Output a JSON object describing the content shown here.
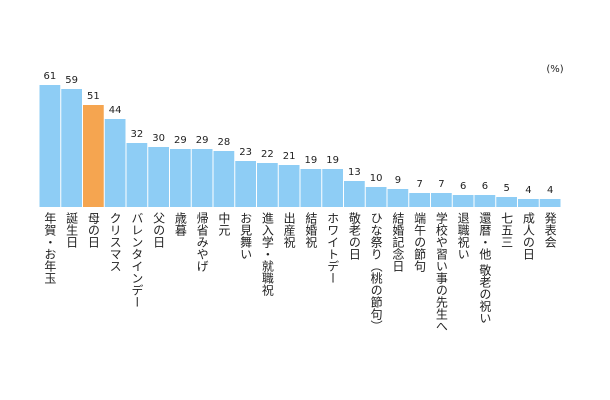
{
  "chart_data": {
    "type": "bar",
    "unit": "(%)",
    "categories": [
      "年賀・お年玉",
      "誕生日",
      "母の日",
      "クリスマス",
      "バレンタインデー",
      "父の日",
      "歳暮",
      "帰省みやげ",
      "中元",
      "お見舞い",
      "進入学・就職祝",
      "出産祝",
      "結婚祝",
      "ホワイトデー",
      "敬老の日",
      "ひな祭り（桃の節句）",
      "結婚記念日",
      "端午の節句",
      "学校や習い事の先生へ",
      "退職祝い",
      "還暦・他 敬老の祝い",
      "七五三",
      "成人の日",
      "発表会"
    ],
    "values": [
      61,
      59,
      51,
      44,
      32,
      30,
      29,
      29,
      28,
      23,
      22,
      21,
      19,
      19,
      13,
      10,
      9,
      7,
      7,
      6,
      6,
      5,
      4,
      4
    ],
    "colors": [
      "#8ecdf5",
      "#8ecdf5",
      "#f5a550",
      "#8ecdf5",
      "#8ecdf5",
      "#8ecdf5",
      "#8ecdf5",
      "#8ecdf5",
      "#8ecdf5",
      "#8ecdf5",
      "#8ecdf5",
      "#8ecdf5",
      "#8ecdf5",
      "#8ecdf5",
      "#8ecdf5",
      "#8ecdf5",
      "#8ecdf5",
      "#8ecdf5",
      "#8ecdf5",
      "#8ecdf5",
      "#8ecdf5",
      "#8ecdf5",
      "#8ecdf5",
      "#8ecdf5"
    ]
  }
}
